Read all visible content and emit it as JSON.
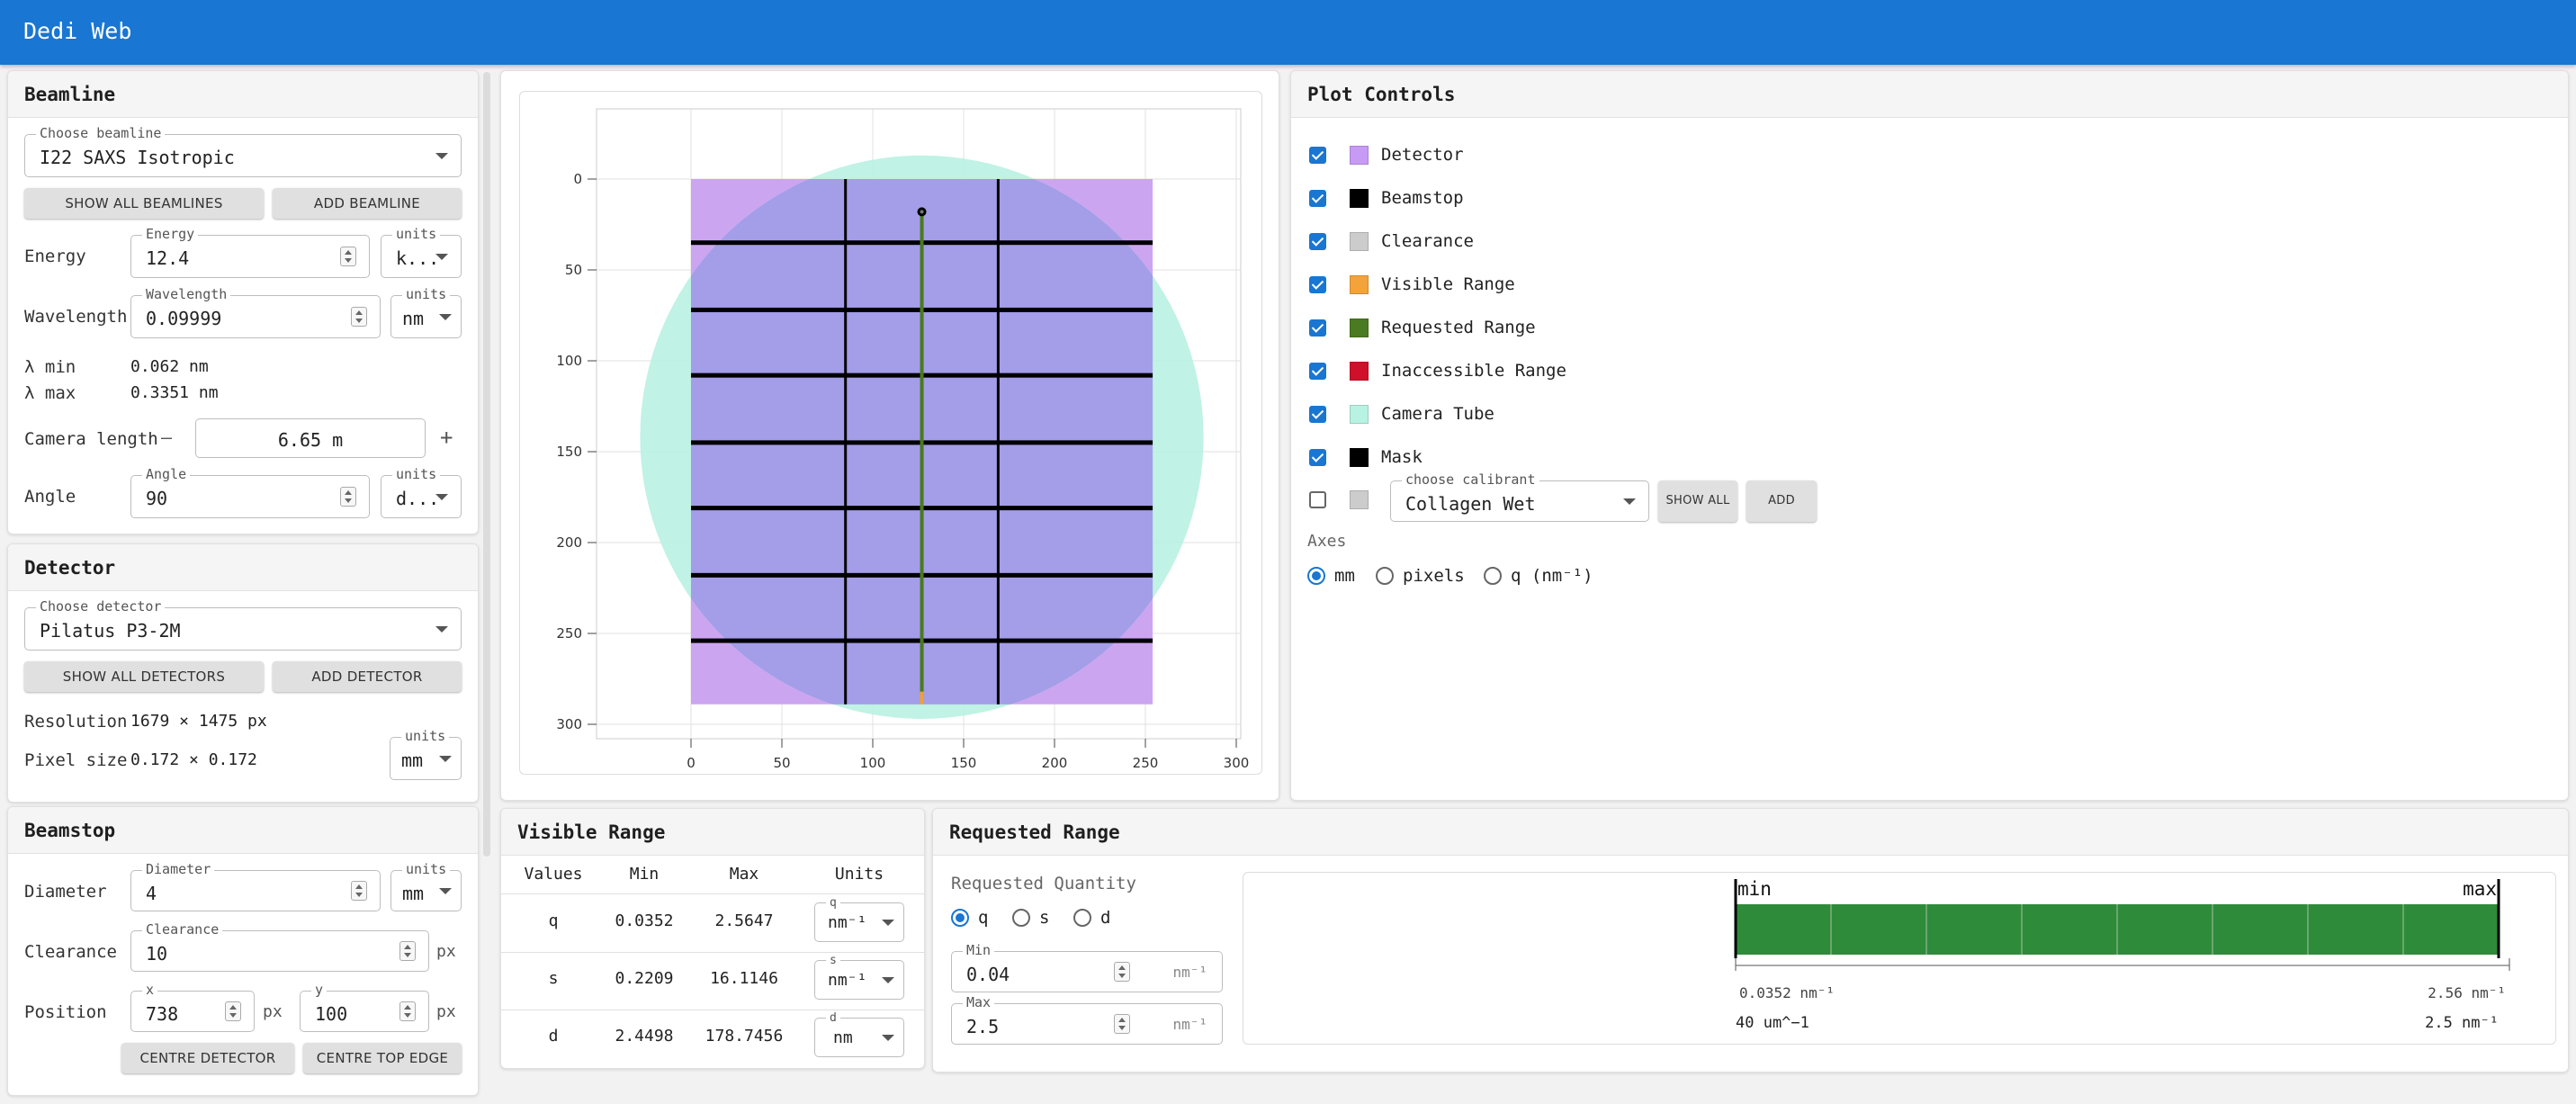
{
  "app": {
    "title": "Dedi Web"
  },
  "beamline": {
    "header": "Beamline",
    "choose_label": "Choose beamline",
    "choose_value": "I22 SAXS Isotropic",
    "show_all": "SHOW ALL BEAMLINES",
    "add": "ADD BEAMLINE",
    "energy": {
      "label": "Energy",
      "field_label": "Energy",
      "value": "12.4",
      "units_label": "units",
      "units_value": "k..."
    },
    "wavelength": {
      "label": "Wavelength",
      "field_label": "Wavelength",
      "value": "0.09999",
      "units_label": "units",
      "units_value": "nm"
    },
    "lambda_min": {
      "label": "λ min",
      "value": "0.062 nm"
    },
    "lambda_max": {
      "label": "λ max",
      "value": "0.3351 nm"
    },
    "camera_length": {
      "label": "Camera length",
      "value": "6.65 m",
      "minus": "—",
      "plus": "+"
    },
    "angle": {
      "label": "Angle",
      "field_label": "Angle",
      "value": "90",
      "units_label": "units",
      "units_value": "d..."
    }
  },
  "detector": {
    "header": "Detector",
    "choose_label": "Choose detector",
    "choose_value": "Pilatus P3-2M",
    "show_all": "SHOW ALL DETECTORS",
    "add": "ADD DETECTOR",
    "resolution": {
      "label": "Resolution",
      "value": "1679 × 1475 px"
    },
    "pixel_size": {
      "label": "Pixel size",
      "value": "0.172 × 0.172",
      "units_label": "units",
      "units_value": "mm"
    }
  },
  "beamstop": {
    "header": "Beamstop",
    "diameter": {
      "label": "Diameter",
      "field_label": "Diameter",
      "value": "4",
      "units_label": "units",
      "units_value": "mm"
    },
    "clearance": {
      "label": "Clearance",
      "field_label": "Clearance",
      "value": "10",
      "suffix": "px"
    },
    "position": {
      "label": "Position",
      "x_label": "x",
      "x_value": "738",
      "y_label": "y",
      "y_value": "100",
      "suffix": "px"
    },
    "centre_detector": "CENTRE DETECTOR",
    "centre_top": "CENTRE TOP EDGE"
  },
  "plot": {
    "x_ticks": [
      "0",
      "50",
      "100",
      "150",
      "200",
      "250",
      "300"
    ],
    "y_ticks": [
      "0",
      "50",
      "100",
      "150",
      "200",
      "250",
      "300"
    ],
    "colors": {
      "detector": "#c9a0f0",
      "camera_tube": "#b5f0e0",
      "overlap": "#a49de8",
      "mask": "#000000",
      "requested": "#4a7a1e",
      "visible": "#f0a030"
    }
  },
  "plot_controls": {
    "header": "Plot Controls",
    "items": [
      {
        "label": "Detector",
        "checked": true,
        "color": "#c79af5"
      },
      {
        "label": "Beamstop",
        "checked": true,
        "color": "#000000"
      },
      {
        "label": "Clearance",
        "checked": true,
        "color": "#cccccc"
      },
      {
        "label": "Visible Range",
        "checked": true,
        "color": "#f2a33a"
      },
      {
        "label": "Requested Range",
        "checked": true,
        "color": "#4a7a22"
      },
      {
        "label": "Inaccessible Range",
        "checked": true,
        "color": "#d0102a"
      },
      {
        "label": "Camera Tube",
        "checked": true,
        "color": "#b8f2e2"
      },
      {
        "label": "Mask",
        "checked": true,
        "color": "#000000"
      }
    ],
    "calibrant": {
      "checked": false,
      "color": "#cccccc",
      "label": "choose calibrant",
      "value": "Collagen Wet",
      "show_all": "SHOW ALL",
      "add": "ADD"
    },
    "axes": {
      "label": "Axes",
      "options": [
        "mm",
        "pixels",
        "q (nm⁻¹)"
      ],
      "selected": 0
    }
  },
  "visible_range": {
    "header": "Visible Range",
    "columns": [
      "Values",
      "Min",
      "Max",
      "Units"
    ],
    "rows": [
      {
        "name": "q",
        "min": "0.0352",
        "max": "2.5647",
        "units_label": "q",
        "units": "nm⁻¹"
      },
      {
        "name": "s",
        "min": "0.2209",
        "max": "16.1146",
        "units_label": "s",
        "units": "nm⁻¹"
      },
      {
        "name": "d",
        "min": "2.4498",
        "max": "178.7456",
        "units_label": "d",
        "units": "nm"
      }
    ]
  },
  "requested_range": {
    "header": "Requested Range",
    "quantity_label": "Requested Quantity",
    "options": [
      "q",
      "s",
      "d"
    ],
    "selected": 0,
    "min": {
      "label": "Min",
      "value": "0.04",
      "units": "nm⁻¹"
    },
    "max": {
      "label": "Max",
      "value": "2.5",
      "units": "nm⁻¹"
    },
    "bar": {
      "min_label": "min",
      "max_label": "max",
      "visible_min": "0.0352 nm⁻¹",
      "visible_max": "2.56 nm⁻¹",
      "requested_min": "40 um^−1",
      "requested_max": "2.5 nm⁻¹",
      "color": "#2e8b3a"
    }
  }
}
